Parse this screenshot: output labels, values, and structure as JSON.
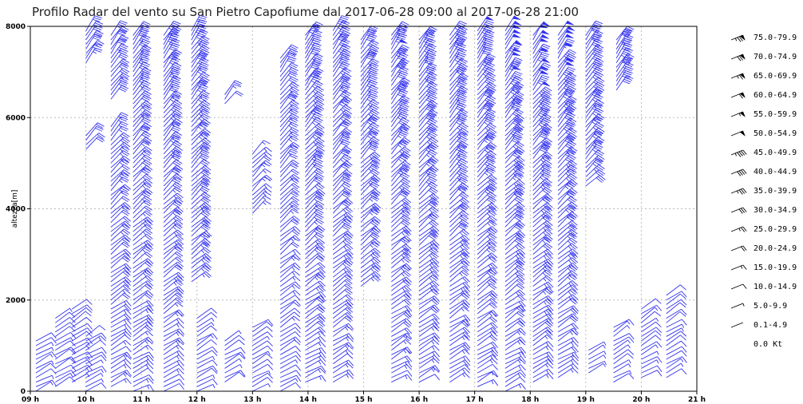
{
  "chart_data": {
    "type": "wind-barb",
    "title": "Profilo Radar del vento su San Pietro Capofiume dal 2017-06-28 09:00 al 2017-06-28 21:00",
    "ylabel": "altezza[m]",
    "ylim": [
      0,
      8000
    ],
    "yticks": [
      "0",
      "2000",
      "4000",
      "6000",
      "8000"
    ],
    "xlim": [
      9,
      21
    ],
    "xticks": [
      "09 h",
      "10 h",
      "11 h",
      "12 h",
      "13 h",
      "14 h",
      "15 h",
      "16 h",
      "17 h",
      "18 h",
      "19 h",
      "20 h",
      "21 h"
    ],
    "grid": true,
    "barb_color": "#3333ee",
    "legend_position": "right",
    "legend": [
      {
        "label": "75.0-79.9",
        "speed": 77
      },
      {
        "label": "70.0-74.9",
        "speed": 72
      },
      {
        "label": "65.0-69.9",
        "speed": 67
      },
      {
        "label": "60.0-64.9",
        "speed": 62
      },
      {
        "label": "55.0-59.9",
        "speed": 57
      },
      {
        "label": "50.0-54.9",
        "speed": 52
      },
      {
        "label": "45.0-49.9",
        "speed": 47
      },
      {
        "label": "40.0-44.9",
        "speed": 42
      },
      {
        "label": "35.0-39.9",
        "speed": 37
      },
      {
        "label": "30.0-34.9",
        "speed": 32
      },
      {
        "label": "25.0-29.9",
        "speed": 27
      },
      {
        "label": "20.0-24.9",
        "speed": 22
      },
      {
        "label": "15.0-19.9",
        "speed": 17
      },
      {
        "label": "10.0-14.9",
        "speed": 12
      },
      {
        "label": "5.0-9.9",
        "speed": 7
      },
      {
        "label": "0.1-4.9",
        "speed": 2
      },
      {
        "label": "0.0 Kt",
        "speed": 0
      }
    ],
    "profiles": [
      {
        "time": 9.1,
        "segments": [
          [
            0,
            1100
          ]
        ],
        "speed_low": 10,
        "speed_high": 15
      },
      {
        "time": 9.45,
        "segments": [
          [
            100,
            1600
          ]
        ],
        "speed_low": 10,
        "speed_high": 20
      },
      {
        "time": 9.75,
        "segments": [
          [
            200,
            1800
          ]
        ],
        "speed_low": 10,
        "speed_high": 20
      },
      {
        "time": 10.0,
        "segments": [
          [
            0,
            1200
          ],
          [
            5300,
            5600
          ],
          [
            7200,
            7900
          ]
        ],
        "speed_low": 10,
        "speed_high": 30
      },
      {
        "time": 10.45,
        "segments": [
          [
            100,
            5800
          ],
          [
            6400,
            7800
          ]
        ],
        "speed_low": 15,
        "speed_high": 35
      },
      {
        "time": 10.85,
        "segments": [
          [
            0,
            7800
          ]
        ],
        "speed_low": 15,
        "speed_high": 40
      },
      {
        "time": 11.4,
        "segments": [
          [
            0,
            7800
          ]
        ],
        "speed_low": 15,
        "speed_high": 45
      },
      {
        "time": 11.9,
        "segments": [
          [
            2400,
            7900
          ]
        ],
        "speed_low": 20,
        "speed_high": 45
      },
      {
        "time": 12.0,
        "segments": [
          [
            0,
            1600
          ]
        ],
        "speed_low": 10,
        "speed_high": 20
      },
      {
        "time": 12.5,
        "segments": [
          [
            200,
            1100
          ],
          [
            6300,
            6500
          ]
        ],
        "speed_low": 10,
        "speed_high": 20
      },
      {
        "time": 13.0,
        "segments": [
          [
            0,
            1400
          ],
          [
            3900,
            5200
          ]
        ],
        "speed_low": 10,
        "speed_high": 25
      },
      {
        "time": 13.5,
        "segments": [
          [
            0,
            7300
          ]
        ],
        "speed_low": 10,
        "speed_high": 35
      },
      {
        "time": 13.95,
        "segments": [
          [
            200,
            7800
          ]
        ],
        "speed_low": 15,
        "speed_high": 45
      },
      {
        "time": 14.45,
        "segments": [
          [
            200,
            7900
          ]
        ],
        "speed_low": 15,
        "speed_high": 45
      },
      {
        "time": 14.95,
        "segments": [
          [
            2300,
            7700
          ]
        ],
        "speed_low": 20,
        "speed_high": 45
      },
      {
        "time": 15.5,
        "segments": [
          [
            200,
            7800
          ]
        ],
        "speed_low": 15,
        "speed_high": 50
      },
      {
        "time": 16.0,
        "segments": [
          [
            200,
            7700
          ]
        ],
        "speed_low": 15,
        "speed_high": 50
      },
      {
        "time": 16.55,
        "segments": [
          [
            200,
            7800
          ]
        ],
        "speed_low": 15,
        "speed_high": 50
      },
      {
        "time": 17.05,
        "segments": [
          [
            100,
            7900
          ]
        ],
        "speed_low": 15,
        "speed_high": 50
      },
      {
        "time": 17.55,
        "segments": [
          [
            0,
            7900
          ]
        ],
        "speed_low": 15,
        "speed_high": 55
      },
      {
        "time": 18.05,
        "segments": [
          [
            200,
            7800
          ]
        ],
        "speed_low": 15,
        "speed_high": 55
      },
      {
        "time": 18.5,
        "segments": [
          [
            300,
            7800
          ]
        ],
        "speed_low": 15,
        "speed_high": 55
      },
      {
        "time": 19.0,
        "segments": [
          [
            4500,
            7800
          ]
        ],
        "speed_low": 20,
        "speed_high": 45
      },
      {
        "time": 19.05,
        "segments": [
          [
            400,
            900
          ]
        ],
        "speed_low": 5,
        "speed_high": 15
      },
      {
        "time": 19.55,
        "segments": [
          [
            6600,
            7700
          ]
        ],
        "speed_low": 25,
        "speed_high": 45
      },
      {
        "time": 19.5,
        "segments": [
          [
            200,
            1400
          ]
        ],
        "speed_low": 10,
        "speed_high": 20
      },
      {
        "time": 20.0,
        "segments": [
          [
            300,
            1800
          ]
        ],
        "speed_low": 10,
        "speed_high": 20
      },
      {
        "time": 20.45,
        "segments": [
          [
            300,
            2100
          ]
        ],
        "speed_low": 10,
        "speed_high": 20
      }
    ]
  }
}
